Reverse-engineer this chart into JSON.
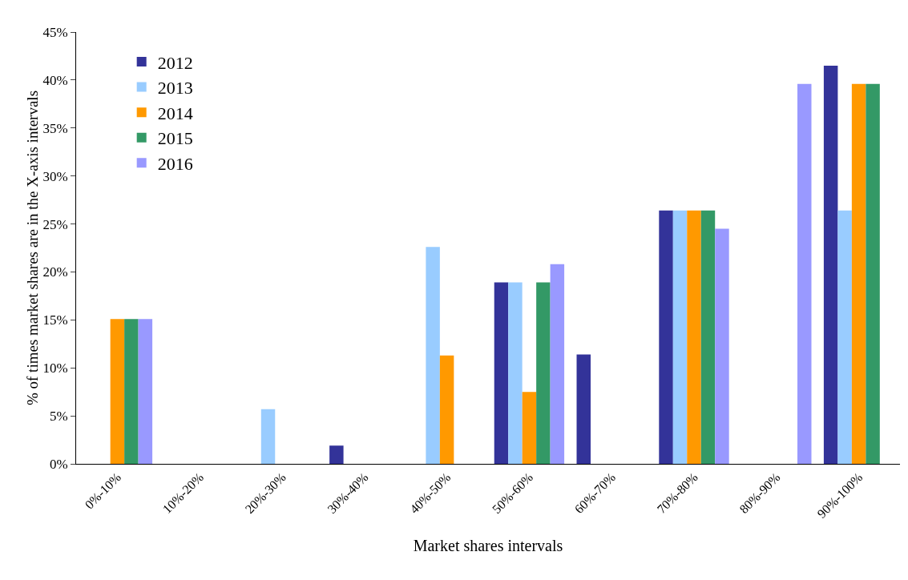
{
  "chart_data": {
    "type": "bar",
    "xlabel": "Market shares intervals",
    "ylabel": "% of times market shares are in the X-axis intervals",
    "categories": [
      "0%-10%",
      "10%-20%",
      "20%-30%",
      "30%-40%",
      "40%-50%",
      "50%-60%",
      "60%-70%",
      "70%-80%",
      "80%-90%",
      "90%-100%"
    ],
    "series": [
      {
        "name": "2012",
        "color": "#333399",
        "values": [
          0,
          0,
          0,
          1.9,
          0,
          18.9,
          11.4,
          26.4,
          0,
          41.5
        ]
      },
      {
        "name": "2013",
        "color": "#99ccff",
        "values": [
          0,
          0,
          5.7,
          0,
          22.6,
          18.9,
          0,
          26.4,
          0,
          26.4
        ]
      },
      {
        "name": "2014",
        "color": "#ff9900",
        "values": [
          15.1,
          0,
          0,
          0,
          11.3,
          7.5,
          0,
          26.4,
          0,
          39.6
        ]
      },
      {
        "name": "2015",
        "color": "#339966",
        "values": [
          15.1,
          0,
          0,
          0,
          0,
          18.9,
          0,
          26.4,
          0,
          39.6
        ]
      },
      {
        "name": "2016",
        "color": "#9999ff",
        "values": [
          15.1,
          0,
          0,
          0,
          0,
          20.8,
          0,
          24.5,
          39.6,
          0
        ]
      }
    ],
    "ylim": [
      0,
      45
    ],
    "yticks": [
      {
        "value": 0,
        "label": "0%"
      },
      {
        "value": 5,
        "label": "5%"
      },
      {
        "value": 10,
        "label": "10%"
      },
      {
        "value": 15,
        "label": "15%"
      },
      {
        "value": 20,
        "label": "20%"
      },
      {
        "value": 25,
        "label": "25%"
      },
      {
        "value": 30,
        "label": "30%"
      },
      {
        "value": 35,
        "label": "35%"
      },
      {
        "value": 40,
        "label": "40%"
      },
      {
        "value": 45,
        "label": "45%"
      }
    ],
    "grid": false,
    "legend": "top left"
  }
}
